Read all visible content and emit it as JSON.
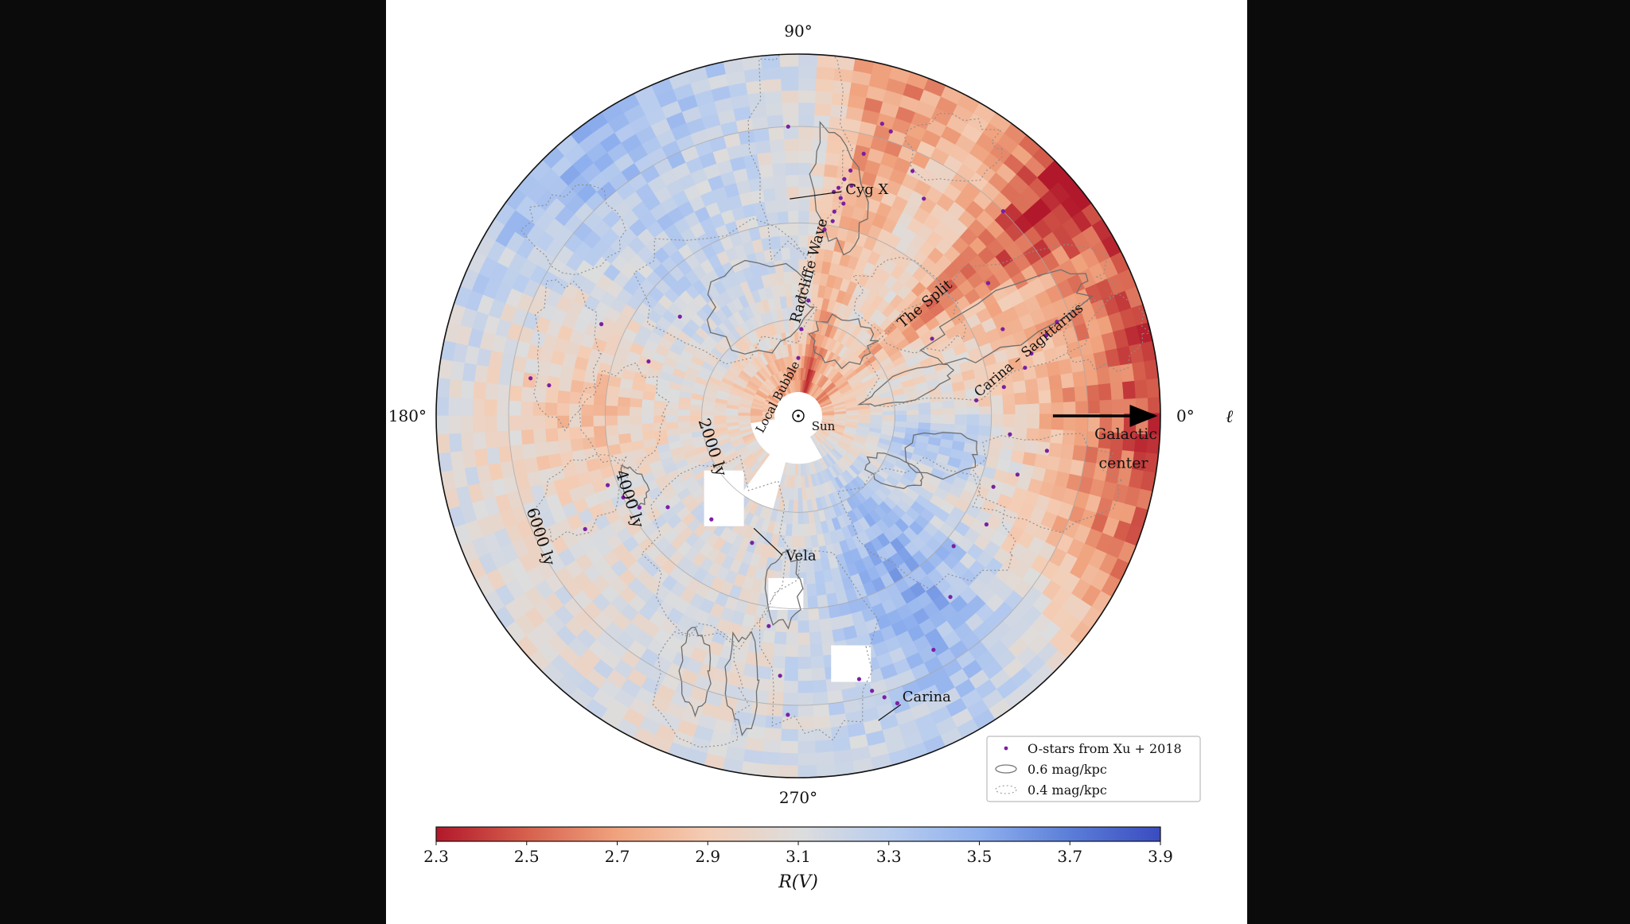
{
  "chart_data": {
    "type": "heatmap",
    "projection": "polar",
    "title": "",
    "angle_axis": {
      "symbol": "ℓ",
      "tick_labels": [
        "90°",
        "180°",
        "270°",
        "0°"
      ],
      "tick_degrees": [
        90,
        180,
        270,
        0
      ]
    },
    "radial_rings": [
      {
        "distance_ly": 2000,
        "label": "2000 ly"
      },
      {
        "distance_ly": 4000,
        "label": "4000 ly"
      },
      {
        "distance_ly": 6000,
        "label": "6000 ly"
      }
    ],
    "r_max_ly": 7500,
    "colorbar": {
      "label": "R(V)",
      "min": 2.3,
      "max": 3.9,
      "ticks": [
        "2.3",
        "2.5",
        "2.7",
        "2.9",
        "3.1",
        "3.3",
        "3.5",
        "3.7",
        "3.9"
      ],
      "colormap": "coolwarm",
      "stops": [
        "#b2182b",
        "#d6604d",
        "#f0a37e",
        "#f4cdb5",
        "#dddddd",
        "#b9cdee",
        "#8fb0ee",
        "#5b7ed8",
        "#3a4cc0"
      ]
    },
    "annotations": [
      {
        "text": "Cyg X",
        "l_deg": 78,
        "d_ly": 4700
      },
      {
        "text": "Radcliffe Wave",
        "l_deg": 84,
        "d_ly": 3000
      },
      {
        "text": "The Split",
        "l_deg": 40,
        "d_ly": 3500
      },
      {
        "text": "Carina – Sagittarius",
        "l_deg": 15,
        "d_ly": 5000
      },
      {
        "text": "Local Bubble",
        "l_deg": 135,
        "d_ly": 500
      },
      {
        "text": "Sun",
        "l_deg": 330,
        "d_ly": 600
      },
      {
        "text": "Vela",
        "l_deg": 265,
        "d_ly": 3000
      },
      {
        "text": "Carina",
        "l_deg": 290,
        "d_ly": 6300
      },
      {
        "text": "Galactic",
        "l_deg": 356,
        "d_ly": 6800
      },
      {
        "text": "center",
        "l_deg": 352,
        "d_ly": 6800
      }
    ],
    "legend": {
      "placement": "bottom-right",
      "entries": [
        "O-stars from Xu + 2018",
        "0.6 mag/kpc",
        "0.4 mag/kpc"
      ]
    },
    "series": [
      {
        "name": "O-stars from Xu + 2018",
        "points": [
          {
            "l": 80,
            "d": 4800
          },
          {
            "l": 79,
            "d": 4600
          },
          {
            "l": 78,
            "d": 4500
          },
          {
            "l": 80,
            "d": 4300
          },
          {
            "l": 81,
            "d": 4700
          },
          {
            "l": 77,
            "d": 4900
          },
          {
            "l": 79,
            "d": 5000
          },
          {
            "l": 78,
            "d": 5200
          },
          {
            "l": 76,
            "d": 5600
          },
          {
            "l": 74,
            "d": 6300
          },
          {
            "l": 72,
            "d": 6200
          },
          {
            "l": 82,
            "d": 3900
          },
          {
            "l": 80,
            "d": 4100
          },
          {
            "l": 85,
            "d": 2400
          },
          {
            "l": 88,
            "d": 1800
          },
          {
            "l": 90,
            "d": 1200
          },
          {
            "l": 92,
            "d": 6000
          },
          {
            "l": 140,
            "d": 3200
          },
          {
            "l": 155,
            "d": 4500
          },
          {
            "l": 160,
            "d": 3300
          },
          {
            "l": 172,
            "d": 5600
          },
          {
            "l": 173,
            "d": 5200
          },
          {
            "l": 200,
            "d": 4200
          },
          {
            "l": 205,
            "d": 4000
          },
          {
            "l": 210,
            "d": 3800
          },
          {
            "l": 208,
            "d": 5000
          },
          {
            "l": 215,
            "d": 3300
          },
          {
            "l": 230,
            "d": 2800
          },
          {
            "l": 250,
            "d": 2800
          },
          {
            "l": 262,
            "d": 4400
          },
          {
            "l": 266,
            "d": 5400
          },
          {
            "l": 268,
            "d": 6200
          },
          {
            "l": 283,
            "d": 5600
          },
          {
            "l": 285,
            "d": 5900
          },
          {
            "l": 287,
            "d": 6100
          },
          {
            "l": 289,
            "d": 6300
          },
          {
            "l": 300,
            "d": 5600
          },
          {
            "l": 310,
            "d": 4900
          },
          {
            "l": 320,
            "d": 4200
          },
          {
            "l": 330,
            "d": 4500
          },
          {
            "l": 340,
            "d": 4300
          },
          {
            "l": 345,
            "d": 4700
          },
          {
            "l": 352,
            "d": 5200
          },
          {
            "l": 355,
            "d": 4400
          },
          {
            "l": 5,
            "d": 3700
          },
          {
            "l": 8,
            "d": 4300
          },
          {
            "l": 12,
            "d": 4800
          },
          {
            "l": 15,
            "d": 5000
          },
          {
            "l": 18,
            "d": 5400
          },
          {
            "l": 20,
            "d": 5700
          },
          {
            "l": 23,
            "d": 4600
          },
          {
            "l": 30,
            "d": 3200
          },
          {
            "l": 35,
            "d": 4800
          },
          {
            "l": 45,
            "d": 6000
          },
          {
            "l": 60,
            "d": 5200
          },
          {
            "l": 65,
            "d": 5600
          }
        ]
      }
    ]
  }
}
